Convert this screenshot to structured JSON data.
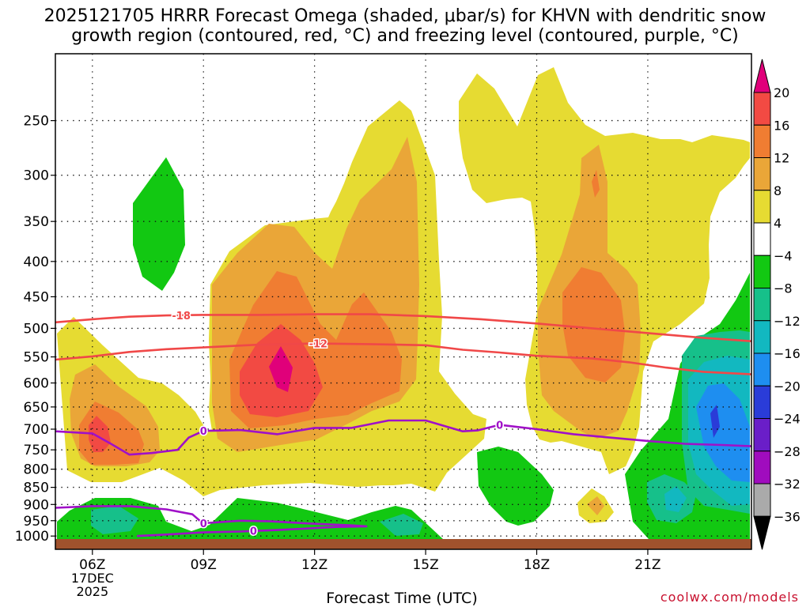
{
  "title": {
    "line1": "2025121705 HRRR Forecast Omega (shaded, μbar/s) for KHVN with dendritic snow",
    "line2": "growth region (contoured, red, °C) and freezing level (contoured, purple, °C)"
  },
  "credit": "coolwx.com/models",
  "colors": {
    "strong_rise_20": "#e0007a",
    "rise_16": "#f24a43",
    "rise_12": "#f07d32",
    "rise_8": "#eaa638",
    "rise_4": "#e6db32",
    "neutral": "#ffffff",
    "sink_4": "#12c812",
    "sink_8": "#16c08a",
    "sink_12": "#12b8c0",
    "sink_16": "#1e8ef0",
    "sink_20": "#2a3cd8",
    "sink_24": "#6a1ec8",
    "sink_28": "#a00cbe",
    "sink_32": "#aaaaaa",
    "dgz_contour": "#f04848",
    "freezing_contour": "#a010c8",
    "ground": "#a0522d"
  },
  "chart_data": {
    "type": "contour",
    "title": "2025121705 HRRR Forecast Omega (shaded, μbar/s) for KHVN with dendritic snow growth region (contoured, red, °C) and freezing level (contoured, purple, °C)",
    "xlabel": "Forecast Time (UTC)",
    "ylabel": "",
    "x_ticks": [
      "06Z",
      "09Z",
      "12Z",
      "15Z",
      "18Z",
      "21Z"
    ],
    "x_first_tick_sub": [
      "17DEC",
      "2025"
    ],
    "x_range_hours": [
      5.0,
      23.8
    ],
    "y_ticks": [
      250,
      300,
      350,
      400,
      450,
      500,
      550,
      600,
      650,
      700,
      750,
      800,
      850,
      900,
      950,
      1000
    ],
    "y_range_mb": [
      200,
      1010
    ],
    "y_scale": "log-pressure",
    "grid": true,
    "colorbar": {
      "levels": [
        20,
        16,
        12,
        8,
        4,
        -4,
        -8,
        -12,
        -16,
        -20,
        -24,
        -28,
        -32,
        -36
      ],
      "labels": [
        "20",
        "16",
        "12",
        "8",
        "4",
        "−4",
        "−8",
        "−12",
        "−16",
        "−20",
        "−24",
        "−28",
        "−32",
        "−36"
      ]
    },
    "series": [
      {
        "name": "-18",
        "color": "#f04848",
        "label_at": 8,
        "points": [
          [
            5.0,
            490
          ],
          [
            6.0,
            485
          ],
          [
            7.0,
            481
          ],
          [
            8.0,
            479
          ],
          [
            9.0,
            478
          ],
          [
            10.5,
            478
          ],
          [
            12.0,
            477
          ],
          [
            13.5,
            477
          ],
          [
            15.0,
            480
          ],
          [
            16.5,
            485
          ],
          [
            18.0,
            492
          ],
          [
            19.5,
            500
          ],
          [
            21.0,
            508
          ],
          [
            22.5,
            516
          ],
          [
            23.8,
            522
          ]
        ]
      },
      {
        "name": "-12",
        "color": "#f04848",
        "label_at": 12,
        "points": [
          [
            5.0,
            555
          ],
          [
            6.0,
            549
          ],
          [
            7.0,
            541
          ],
          [
            8.0,
            536
          ],
          [
            9.0,
            533
          ],
          [
            10.5,
            528
          ],
          [
            12.0,
            526
          ],
          [
            13.5,
            527
          ],
          [
            15.0,
            529
          ],
          [
            16.0,
            537
          ],
          [
            17.0,
            542
          ],
          [
            18.0,
            548
          ],
          [
            19.5,
            553
          ],
          [
            20.5,
            560
          ],
          [
            21.5,
            570
          ],
          [
            22.5,
            578
          ],
          [
            23.8,
            583
          ]
        ]
      },
      {
        "name": "0",
        "color": "#a010c8",
        "label_at": 9,
        "points": [
          [
            5.0,
            705
          ],
          [
            6.0,
            710
          ],
          [
            6.5,
            735
          ],
          [
            7.0,
            762
          ],
          [
            7.6,
            758
          ],
          [
            8.3,
            750
          ],
          [
            8.6,
            720
          ],
          [
            9.0,
            704
          ],
          [
            10.0,
            702
          ],
          [
            11.0,
            712
          ],
          [
            12.0,
            697
          ],
          [
            13.0,
            697
          ],
          [
            14.0,
            680
          ],
          [
            15.0,
            680
          ],
          [
            16.0,
            705
          ],
          [
            16.4,
            703
          ],
          [
            17.0,
            690
          ],
          [
            18.0,
            700
          ],
          [
            19.0,
            712
          ],
          [
            20.0,
            720
          ],
          [
            21.0,
            728
          ],
          [
            22.0,
            735
          ],
          [
            23.0,
            738
          ],
          [
            23.8,
            741
          ]
        ]
      },
      {
        "name": "0",
        "color": "#a010c8",
        "label_at": 9,
        "points": [
          [
            5.0,
            910
          ],
          [
            6.0,
            905
          ],
          [
            7.0,
            905
          ],
          [
            8.0,
            915
          ],
          [
            8.7,
            930
          ],
          [
            8.9,
            950
          ],
          [
            9.0,
            958
          ],
          [
            10.0,
            950
          ],
          [
            10.8,
            952
          ],
          [
            12.0,
            960
          ],
          [
            13.0,
            965
          ],
          [
            13.4,
            968
          ],
          [
            12.6,
            970
          ],
          [
            12.0,
            974
          ],
          [
            11.0,
            980
          ],
          [
            10.0,
            985
          ],
          [
            9.0,
            988
          ],
          [
            8.0,
            995
          ],
          [
            7.2,
            1000
          ]
        ]
      }
    ]
  }
}
